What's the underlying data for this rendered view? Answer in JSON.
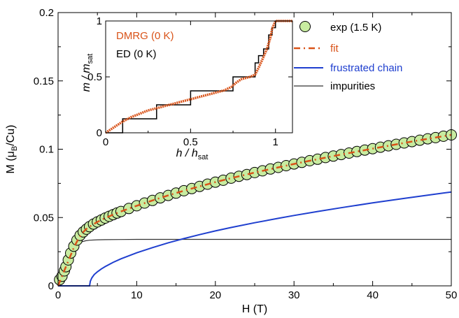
{
  "chart_data": [
    {
      "type": "line",
      "title": "",
      "xlabel": "H (T)",
      "ylabel": "M (μB/Cu)",
      "ylabel_parts": {
        "pre": "M (μ",
        "sub": "B",
        "post": "/Cu)"
      },
      "xlim": [
        0,
        50
      ],
      "ylim": [
        0,
        0.2
      ],
      "x_ticks": [
        0,
        10,
        20,
        30,
        40,
        50
      ],
      "x_tick_labels": [
        "0",
        "10",
        "20",
        "30",
        "40",
        "50"
      ],
      "y_ticks": [
        0,
        0.05,
        0.1,
        0.15,
        0.2
      ],
      "y_tick_labels": [
        "0",
        "0.05",
        "0.1",
        "0.15",
        "0.2"
      ],
      "legend_position": "top-right",
      "series": [
        {
          "name": "exp (1.5 K)",
          "kind": "scatter",
          "color": "#c8eca0",
          "edge_color": "#000000",
          "x": [
            0.2,
            0.5,
            0.8,
            1.0,
            1.3,
            1.6,
            2.0,
            2.4,
            2.8,
            3.2,
            3.6,
            4.0,
            4.5,
            5.0,
            5.5,
            6.0,
            6.5,
            7.0,
            7.5,
            8.0,
            9.0,
            10.0,
            11.0,
            12.0,
            13.0,
            14.0,
            15.0,
            16.0,
            17.0,
            18.0,
            19.0,
            20.0,
            21.0,
            22.0,
            23.0,
            24.0,
            25.0,
            26.0,
            27.0,
            28.0,
            29.0,
            30.0,
            31.0,
            32.0,
            33.0,
            34.0,
            35.0,
            36.0,
            37.0,
            38.0,
            39.0,
            40.0,
            41.0,
            42.0,
            43.0,
            44.0,
            45.0,
            46.0,
            47.0,
            48.0,
            49.0,
            50.0
          ],
          "y": [
            0.0045,
            0.007,
            0.011,
            0.014,
            0.019,
            0.024,
            0.029,
            0.0335,
            0.037,
            0.0395,
            0.0415,
            0.0433,
            0.0452,
            0.0468,
            0.0482,
            0.0496,
            0.0509,
            0.0521,
            0.0533,
            0.0544,
            0.0566,
            0.0586,
            0.0606,
            0.0625,
            0.0644,
            0.0662,
            0.0679,
            0.0696,
            0.0712,
            0.0728,
            0.0744,
            0.0759,
            0.0773,
            0.0788,
            0.0802,
            0.0815,
            0.0829,
            0.0842,
            0.0855,
            0.0867,
            0.088,
            0.0892,
            0.0904,
            0.0916,
            0.0927,
            0.0939,
            0.095,
            0.0961,
            0.0972,
            0.0983,
            0.0994,
            0.1004,
            0.1015,
            0.1025,
            0.1036,
            0.1046,
            0.1056,
            0.1066,
            0.1076,
            0.1085,
            0.1095,
            0.1105
          ]
        },
        {
          "name": "fit",
          "kind": "dashed-line",
          "color": "#d95319",
          "x": [
            0,
            0.5,
            1.0,
            1.5,
            2.0,
            2.5,
            3.0,
            3.5,
            4.0,
            5.0,
            6.0,
            7.0,
            8.0,
            10.0,
            12.0,
            14.0,
            16.0,
            18.0,
            20.0,
            22.0,
            25.0,
            28.0,
            30.0,
            33.0,
            36.0,
            40.0,
            44.0,
            47.0,
            50.0
          ],
          "y": [
            0.0,
            0.007,
            0.014,
            0.021,
            0.028,
            0.0335,
            0.038,
            0.0412,
            0.0433,
            0.0468,
            0.0496,
            0.0521,
            0.0544,
            0.0586,
            0.0625,
            0.0662,
            0.0696,
            0.0728,
            0.0759,
            0.0788,
            0.0829,
            0.0867,
            0.0892,
            0.0927,
            0.0961,
            0.1004,
            0.1046,
            0.1076,
            0.1105
          ]
        },
        {
          "name": "frustrated chain",
          "kind": "line",
          "color": "#1f3fcf",
          "x": [
            0,
            4.0,
            4.1,
            4.3,
            4.6,
            5.0,
            5.5,
            6.0,
            7.0,
            8.0,
            10.0,
            12.0,
            14.0,
            16.0,
            18.0,
            20.0,
            22.0,
            25.0,
            28.0,
            30.0,
            33.0,
            36.0,
            40.0,
            44.0,
            47.0,
            50.0
          ],
          "y": [
            0.0,
            0.0,
            0.0034,
            0.0059,
            0.0083,
            0.0103,
            0.0124,
            0.0141,
            0.0172,
            0.0198,
            0.0242,
            0.028,
            0.0315,
            0.0346,
            0.0375,
            0.0402,
            0.0427,
            0.0462,
            0.0494,
            0.0515,
            0.0544,
            0.0572,
            0.0607,
            0.064,
            0.0664,
            0.0687
          ]
        },
        {
          "name": "impurities",
          "kind": "line",
          "color": "#333333",
          "x": [
            0,
            0.5,
            1.0,
            1.5,
            2.0,
            2.5,
            3.0,
            3.5,
            4.0,
            5.0,
            6.0,
            8.0,
            10.0,
            20.0,
            30.0,
            40.0,
            50.0
          ],
          "y": [
            0.0,
            0.007,
            0.014,
            0.021,
            0.027,
            0.0305,
            0.0322,
            0.033,
            0.0334,
            0.0337,
            0.0338,
            0.0339,
            0.034,
            0.034,
            0.034,
            0.034,
            0.034
          ]
        }
      ]
    },
    {
      "type": "line",
      "title": "",
      "inset": true,
      "xlabel": "h / hsat",
      "xlabel_parts": {
        "pre": "h / h",
        "sub": "sat"
      },
      "ylabel": "m / msat",
      "ylabel_parts": {
        "pre": "m / m",
        "sub": "sat"
      },
      "xlim": [
        0,
        1.1
      ],
      "ylim": [
        0,
        1
      ],
      "x_ticks": [
        0,
        0.5,
        1
      ],
      "x_tick_labels": [
        "0",
        "0.5",
        "1"
      ],
      "y_ticks": [
        0,
        0.5,
        1
      ],
      "y_tick_labels": [
        "0",
        "0.5",
        "1"
      ],
      "series": [
        {
          "name": "DMRG (0 K)",
          "kind": "dotted-line",
          "color": "#d95319",
          "x": [
            0,
            0.02,
            0.05,
            0.08,
            0.1,
            0.15,
            0.2,
            0.25,
            0.3,
            0.35,
            0.4,
            0.45,
            0.5,
            0.55,
            0.6,
            0.65,
            0.7,
            0.74,
            0.77,
            0.8,
            0.85,
            0.88,
            0.9,
            0.93,
            0.95,
            0.97,
            0.98,
            1.0,
            1.1
          ],
          "y": [
            0,
            0.02,
            0.05,
            0.08,
            0.1,
            0.14,
            0.17,
            0.2,
            0.22,
            0.24,
            0.26,
            0.28,
            0.3,
            0.32,
            0.34,
            0.36,
            0.38,
            0.41,
            0.45,
            0.48,
            0.5,
            0.52,
            0.58,
            0.68,
            0.75,
            0.85,
            0.93,
            1.0,
            1.0
          ]
        },
        {
          "name": "ED (0 K)",
          "kind": "step-line",
          "color": "#000000",
          "x": [
            0,
            0.1,
            0.1,
            0.3,
            0.3,
            0.5,
            0.5,
            0.75,
            0.75,
            0.88,
            0.88,
            0.9,
            0.9,
            0.93,
            0.93,
            0.96,
            0.96,
            0.98,
            0.98,
            1.0,
            1.0,
            1.1
          ],
          "y": [
            0,
            0,
            0.125,
            0.125,
            0.25,
            0.25,
            0.375,
            0.375,
            0.5,
            0.5,
            0.625,
            0.625,
            0.69,
            0.69,
            0.75,
            0.75,
            0.875,
            0.875,
            0.94,
            0.94,
            1.0,
            1.0
          ]
        }
      ]
    }
  ]
}
